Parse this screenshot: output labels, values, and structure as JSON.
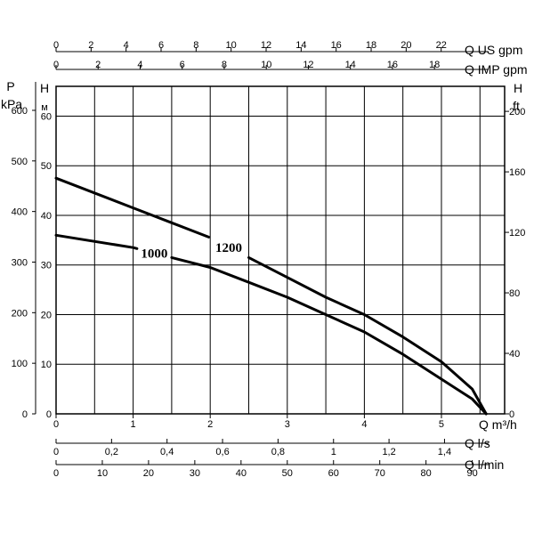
{
  "chart_data": {
    "type": "line",
    "x": {
      "label": "Q m³/h",
      "ticks": [
        "0",
        "1",
        "2",
        "3",
        "4",
        "5"
      ],
      "range": [
        0,
        5.82
      ]
    },
    "secondary_x_axes": [
      {
        "label": "Q US gpm",
        "ticks": [
          "0",
          "2",
          "4",
          "6",
          "8",
          "10",
          "12",
          "14",
          "16",
          "18",
          "20",
          "22"
        ],
        "factor": 4.4029
      },
      {
        "label": "Q IMP gpm",
        "ticks": [
          "0",
          "2",
          "4",
          "6",
          "8",
          "10",
          "12",
          "14",
          "16",
          "18"
        ],
        "factor": 3.6662
      },
      {
        "label": "Q l/s",
        "ticks": [
          "0",
          "0,2",
          "0,4",
          "0,6",
          "0,8",
          "1",
          "1,2",
          "1,4"
        ],
        "factor": 0.27778
      },
      {
        "label": "Q l/min",
        "ticks": [
          "0",
          "10",
          "20",
          "30",
          "40",
          "50",
          "60",
          "70",
          "80",
          "90"
        ],
        "factor": 16.6667
      }
    ],
    "y": {
      "label_main": "H",
      "label_sub": "м",
      "ticks": [
        "0",
        "10",
        "20",
        "30",
        "40",
        "50",
        "60"
      ],
      "range": [
        0,
        66
      ]
    },
    "y_pressure": {
      "label_main": "P",
      "label_sub": "kPa",
      "ticks": [
        "0",
        "100",
        "200",
        "300",
        "400",
        "500",
        "600"
      ]
    },
    "y_feet": {
      "label_main": "H",
      "label_sub": "ft",
      "ticks": [
        "0",
        "40",
        "80",
        "120",
        "160",
        "200"
      ],
      "factor": 3.281
    },
    "series": [
      {
        "name": "1000",
        "x": [
          0,
          1,
          1.5,
          2,
          2.5,
          3,
          3.5,
          4,
          4.5,
          5,
          5.4,
          5.58
        ],
        "y": [
          36,
          33.5,
          31.5,
          29.5,
          26.5,
          23.5,
          20,
          16.5,
          12,
          7,
          3,
          0
        ]
      },
      {
        "name": "1200",
        "x": [
          0,
          1,
          1.5,
          2,
          2.5,
          3,
          3.5,
          4,
          4.5,
          5,
          5.4,
          5.58
        ],
        "y": [
          47.5,
          41.5,
          38.5,
          35.5,
          31.5,
          27.5,
          23.5,
          20,
          15.5,
          10.5,
          5,
          0
        ]
      }
    ],
    "grid": true
  }
}
